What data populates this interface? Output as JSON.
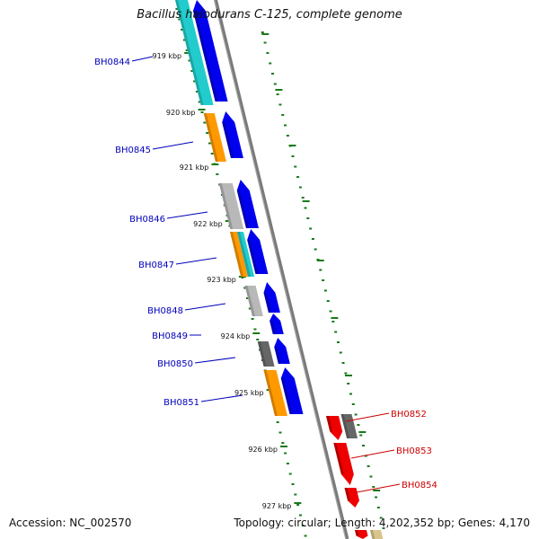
{
  "title": "Bacillus halodurans C-125, complete genome",
  "footer": {
    "accession": "Accession: NC_002570",
    "topology": "Topology: circular; Length: 4,202,352 bp; Genes: 4,170"
  },
  "colors": {
    "left_gene_label": "#0000bb",
    "right_gene_label": "#cc0000",
    "tick": "#1a7a1a",
    "backbone": "#7a7a7a",
    "forward_cds": "#0000ee",
    "reverse_cds": "#ee0000",
    "cog_cyan": "#22cccc",
    "cog_orange": "#ff9900",
    "cog_silver": "#b8b8b8",
    "cog_dark": "#666666",
    "cog_tan": "#d9c58a"
  },
  "kbp_labels": [
    "919 kbp",
    "920 kbp",
    "921 kbp",
    "922 kbp",
    "923 kbp",
    "924 kbp",
    "925 kbp",
    "926 kbp",
    "927 kbp"
  ],
  "genes": [
    {
      "name": "BH0844",
      "side": "left"
    },
    {
      "name": "BH0845",
      "side": "left"
    },
    {
      "name": "BH0846",
      "side": "left"
    },
    {
      "name": "BH0847",
      "side": "left"
    },
    {
      "name": "BH0848",
      "side": "left"
    },
    {
      "name": "BH0849",
      "side": "left"
    },
    {
      "name": "BH0850",
      "side": "left"
    },
    {
      "name": "BH0851",
      "side": "left"
    },
    {
      "name": "BH0852",
      "side": "right"
    },
    {
      "name": "BH0853",
      "side": "right"
    },
    {
      "name": "BH0854",
      "side": "right"
    }
  ]
}
